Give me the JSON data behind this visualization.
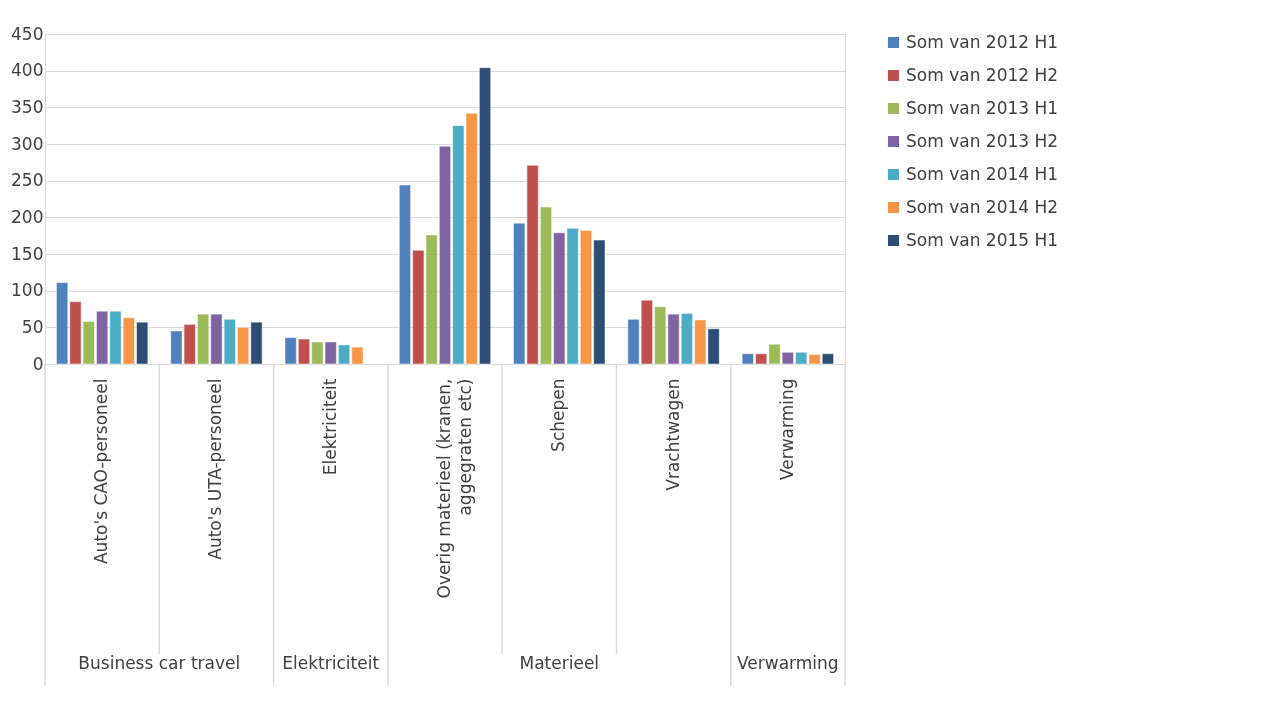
{
  "chart_data": {
    "type": "bar",
    "categories": [
      "Auto's CAO-personeel",
      "Auto's UTA-personeel",
      "Elektriciteit",
      "Overig materieel (kranen, aggegraten etc)",
      "Schepen",
      "Vrachtwagen",
      "Verwarming"
    ],
    "series": [
      {
        "name": "Som van 2012 H1",
        "color": "#4f81bd",
        "values": [
          111,
          45,
          36,
          244,
          192,
          61,
          14
        ]
      },
      {
        "name": "Som van 2012 H2",
        "color": "#c0504d",
        "values": [
          85,
          54,
          34,
          155,
          271,
          87,
          14
        ]
      },
      {
        "name": "Som van 2013 H1",
        "color": "#9bbb59",
        "values": [
          58,
          68,
          30,
          176,
          214,
          78,
          27
        ]
      },
      {
        "name": "Som van 2013 H2",
        "color": "#8064a2",
        "values": [
          72,
          68,
          30,
          297,
          179,
          68,
          16
        ]
      },
      {
        "name": "Som van 2014 H1",
        "color": "#4bacc6",
        "values": [
          72,
          61,
          26,
          325,
          185,
          69,
          16
        ]
      },
      {
        "name": "Som van 2014 H2",
        "color": "#f79646",
        "values": [
          63,
          50,
          23,
          342,
          182,
          60,
          13
        ]
      },
      {
        "name": "Som van 2015 H1",
        "color": "#2c4d75",
        "values": [
          57,
          57,
          null,
          404,
          169,
          48,
          14
        ]
      }
    ],
    "ylim": [
      0,
      450
    ],
    "yticks": [
      0,
      50,
      100,
      150,
      200,
      250,
      300,
      350,
      400,
      450
    ],
    "grid": "y",
    "legend": "right",
    "annotations": [
      "Business car travel",
      "Elektriciteit",
      "Materieel",
      "Verwarming"
    ]
  }
}
